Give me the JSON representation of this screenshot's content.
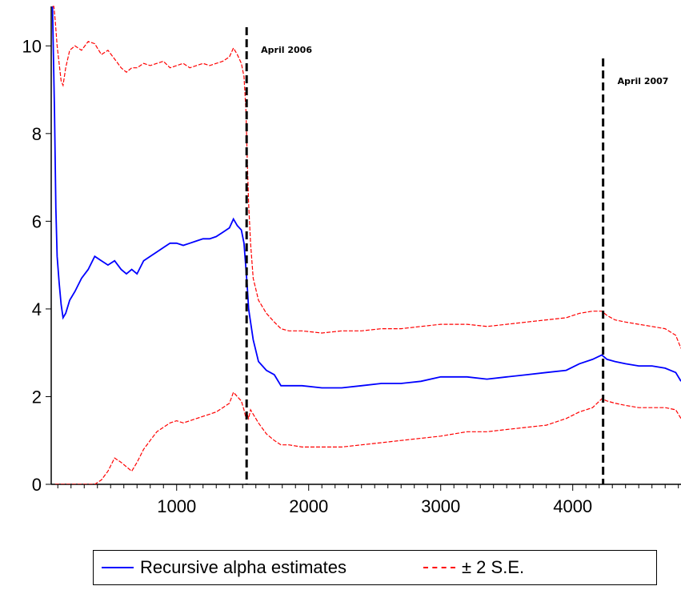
{
  "chart_data": {
    "type": "line",
    "title": "",
    "xlabel": "",
    "ylabel": "",
    "xlim": [
      50,
      4820
    ],
    "ylim": [
      0,
      10.9
    ],
    "x_ticks": [
      1000,
      2000,
      3000,
      4000
    ],
    "y_ticks": [
      0,
      2,
      4,
      6,
      8,
      10
    ],
    "grid": false,
    "legend_position": "bottom",
    "series": [
      {
        "name": "Recursive alpha estimates",
        "color": "#0000ff",
        "style": "solid",
        "x": [
          60,
          75,
          85,
          95,
          110,
          125,
          140,
          160,
          190,
          230,
          280,
          330,
          380,
          430,
          480,
          530,
          580,
          620,
          660,
          700,
          750,
          800,
          850,
          900,
          950,
          1000,
          1050,
          1100,
          1150,
          1200,
          1250,
          1300,
          1350,
          1400,
          1430,
          1460,
          1490,
          1510,
          1525,
          1535,
          1545,
          1560,
          1580,
          1620,
          1680,
          1740,
          1790,
          1850,
          1950,
          2100,
          2250,
          2400,
          2550,
          2700,
          2850,
          3000,
          3100,
          3200,
          3350,
          3500,
          3650,
          3800,
          3950,
          4050,
          4150,
          4220,
          4260,
          4320,
          4400,
          4500,
          4600,
          4700,
          4780,
          4820
        ],
        "y": [
          10.9,
          8.5,
          6.3,
          5.2,
          4.6,
          4.1,
          3.8,
          3.9,
          4.2,
          4.4,
          4.7,
          4.9,
          5.2,
          5.1,
          5.0,
          5.1,
          4.9,
          4.8,
          4.9,
          4.8,
          5.1,
          5.2,
          5.3,
          5.4,
          5.5,
          5.5,
          5.45,
          5.5,
          5.55,
          5.6,
          5.6,
          5.65,
          5.75,
          5.85,
          6.05,
          5.9,
          5.8,
          5.5,
          4.9,
          4.5,
          4.0,
          3.7,
          3.3,
          2.8,
          2.6,
          2.5,
          2.25,
          2.25,
          2.25,
          2.2,
          2.2,
          2.25,
          2.3,
          2.3,
          2.35,
          2.45,
          2.45,
          2.45,
          2.4,
          2.45,
          2.5,
          2.55,
          2.6,
          2.75,
          2.85,
          2.95,
          2.85,
          2.8,
          2.75,
          2.7,
          2.7,
          2.65,
          2.55,
          2.35
        ]
      },
      {
        "name": "± 2 S.E.",
        "color": "#ff0000",
        "style": "dashed",
        "x": [
          60,
          70,
          80,
          95,
          110,
          125,
          140,
          160,
          190,
          230,
          280,
          330,
          380,
          430,
          480,
          530,
          580,
          620,
          660,
          700,
          750,
          800,
          850,
          900,
          950,
          1000,
          1050,
          1100,
          1150,
          1200,
          1250,
          1300,
          1350,
          1400,
          1430,
          1460,
          1490,
          1510,
          1525,
          1535,
          1545,
          1560,
          1580,
          1620,
          1680,
          1740,
          1790,
          1850,
          1950,
          2100,
          2250,
          2400,
          2550,
          2700,
          2850,
          3000,
          3100,
          3200,
          3350,
          3500,
          3650,
          3800,
          3950,
          4050,
          4150,
          4220,
          4260,
          4320,
          4400,
          4500,
          4600,
          4700,
          4780,
          4820
        ],
        "y": [
          10.9,
          10.9,
          10.6,
          10.0,
          9.6,
          9.2,
          9.1,
          9.5,
          9.9,
          10.0,
          9.9,
          10.1,
          10.05,
          9.8,
          9.9,
          9.7,
          9.5,
          9.4,
          9.5,
          9.5,
          9.6,
          9.55,
          9.6,
          9.65,
          9.5,
          9.55,
          9.6,
          9.5,
          9.55,
          9.6,
          9.55,
          9.6,
          9.65,
          9.75,
          9.95,
          9.8,
          9.6,
          9.3,
          8.5,
          7.4,
          6.4,
          5.5,
          4.7,
          4.2,
          3.9,
          3.7,
          3.55,
          3.5,
          3.5,
          3.45,
          3.5,
          3.5,
          3.55,
          3.55,
          3.6,
          3.65,
          3.65,
          3.65,
          3.6,
          3.65,
          3.7,
          3.75,
          3.8,
          3.9,
          3.95,
          3.95,
          3.85,
          3.75,
          3.7,
          3.65,
          3.6,
          3.55,
          3.4,
          3.1
        ]
      },
      {
        "name": "",
        "color": "#ff0000",
        "style": "dashed",
        "x": [
          80,
          95,
          110,
          125,
          140,
          160,
          190,
          230,
          280,
          330,
          380,
          430,
          480,
          530,
          580,
          620,
          660,
          700,
          750,
          800,
          850,
          900,
          950,
          1000,
          1050,
          1100,
          1150,
          1200,
          1250,
          1300,
          1350,
          1400,
          1430,
          1460,
          1490,
          1510,
          1525,
          1535,
          1545,
          1560,
          1580,
          1620,
          1680,
          1740,
          1790,
          1850,
          1950,
          2100,
          2250,
          2400,
          2550,
          2700,
          2850,
          3000,
          3100,
          3200,
          3350,
          3500,
          3650,
          3800,
          3950,
          4050,
          4150,
          4220,
          4260,
          4320,
          4400,
          4500,
          4600,
          4700,
          4780,
          4820
        ],
        "y": [
          0.0,
          0.0,
          0.0,
          0.0,
          0.0,
          0.0,
          0.0,
          0.0,
          0.0,
          0.0,
          0.0,
          0.1,
          0.3,
          0.6,
          0.5,
          0.4,
          0.3,
          0.5,
          0.8,
          1.0,
          1.2,
          1.3,
          1.4,
          1.45,
          1.4,
          1.45,
          1.5,
          1.55,
          1.6,
          1.65,
          1.75,
          1.85,
          2.1,
          2.0,
          1.9,
          1.7,
          1.5,
          1.6,
          1.5,
          1.7,
          1.6,
          1.4,
          1.15,
          1.0,
          0.9,
          0.9,
          0.85,
          0.85,
          0.85,
          0.9,
          0.95,
          1.0,
          1.05,
          1.1,
          1.15,
          1.2,
          1.2,
          1.25,
          1.3,
          1.35,
          1.5,
          1.65,
          1.75,
          1.95,
          1.9,
          1.85,
          1.8,
          1.75,
          1.75,
          1.75,
          1.7,
          1.5
        ]
      }
    ],
    "annotations": [
      {
        "x": 1530,
        "label": "April 2006"
      },
      {
        "x": 4230,
        "label": "April 2007"
      }
    ]
  }
}
